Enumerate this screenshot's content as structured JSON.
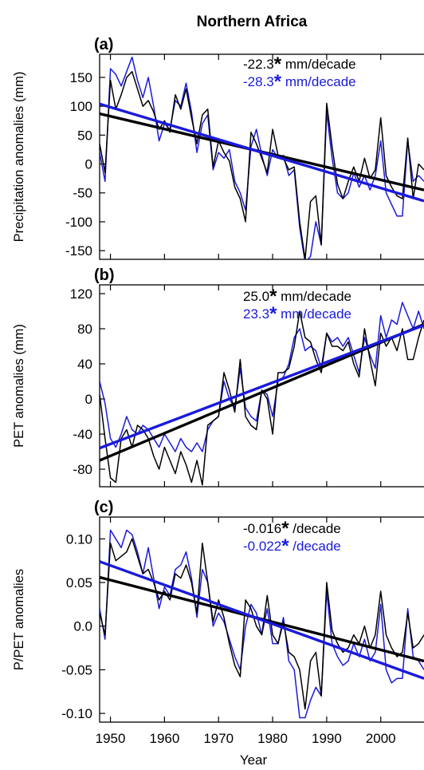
{
  "figure_title": "Northern Africa",
  "xlabel": "Year",
  "colors": {
    "observed": "#000000",
    "model": "#1a1adc",
    "trend_stroke_note": "trend lines drawn thicker"
  },
  "chart_data": [
    {
      "type": "line",
      "panel_label": "(a)",
      "ylabel": "Precipitation anomalies (mm)",
      "xlim": [
        1948,
        2008
      ],
      "ylim": [
        -165,
        190
      ],
      "yticks": [
        150,
        100,
        50,
        0,
        -50,
        -100,
        -150
      ],
      "ytick_labels": [
        "150",
        "100",
        "50",
        "0",
        "-50",
        "-100",
        "-150"
      ],
      "annotations": [
        {
          "value": "-22.3",
          "star": "*",
          "unit": " mm/decade",
          "color": "#000000"
        },
        {
          "value": "-28.3",
          "star": "*",
          "unit": " mm/decade",
          "color": "#1a1adc"
        }
      ],
      "series": [
        {
          "color": "#000000",
          "x": [
            1948,
            1949,
            1950,
            1951,
            1952,
            1953,
            1954,
            1955,
            1956,
            1957,
            1958,
            1959,
            1960,
            1961,
            1962,
            1963,
            1964,
            1965,
            1966,
            1967,
            1968,
            1969,
            1970,
            1971,
            1972,
            1973,
            1974,
            1975,
            1976,
            1977,
            1978,
            1979,
            1980,
            1981,
            1982,
            1983,
            1984,
            1985,
            1986,
            1987,
            1988,
            1989,
            1990,
            1991,
            1992,
            1993,
            1994,
            1995,
            1996,
            1997,
            1998,
            1999,
            2000,
            2001,
            2002,
            2003,
            2004,
            2005,
            2006,
            2007,
            2008
          ],
          "values": [
            35,
            -15,
            145,
            95,
            120,
            150,
            160,
            130,
            100,
            110,
            90,
            60,
            75,
            55,
            120,
            95,
            130,
            80,
            35,
            85,
            95,
            -5,
            40,
            20,
            5,
            -40,
            -60,
            -100,
            55,
            35,
            10,
            -15,
            60,
            15,
            10,
            -10,
            -5,
            -100,
            -165,
            -65,
            -55,
            -140,
            105,
            30,
            -35,
            -60,
            -30,
            -5,
            -30,
            10,
            -25,
            -10,
            80,
            -20,
            -40,
            -55,
            -60,
            45,
            -60,
            0,
            -10
          ],
          "trend": {
            "start": 87,
            "end": -45
          }
        },
        {
          "color": "#1a1adc",
          "x": [
            1948,
            1949,
            1950,
            1951,
            1952,
            1953,
            1954,
            1955,
            1956,
            1957,
            1958,
            1959,
            1960,
            1961,
            1962,
            1963,
            1964,
            1965,
            1966,
            1967,
            1968,
            1969,
            1970,
            1971,
            1972,
            1973,
            1974,
            1975,
            1976,
            1977,
            1978,
            1979,
            1980,
            1981,
            1982,
            1983,
            1984,
            1985,
            1986,
            1987,
            1988,
            1989,
            1990,
            1991,
            1992,
            1993,
            1994,
            1995,
            1996,
            1997,
            1998,
            1999,
            2000,
            2001,
            2002,
            2003,
            2004,
            2005,
            2006,
            2007,
            2008
          ],
          "values": [
            20,
            -30,
            165,
            155,
            135,
            160,
            185,
            145,
            115,
            150,
            100,
            40,
            70,
            60,
            110,
            100,
            140,
            90,
            20,
            70,
            85,
            -10,
            20,
            10,
            25,
            -30,
            -50,
            -80,
            30,
            60,
            15,
            -20,
            25,
            10,
            15,
            -20,
            -10,
            -110,
            -170,
            -160,
            -100,
            -140,
            90,
            10,
            -50,
            -60,
            -50,
            -15,
            -40,
            -20,
            -45,
            -20,
            40,
            -50,
            -70,
            -90,
            -90,
            40,
            -30,
            -20,
            -30
          ],
          "trend": {
            "start": 104,
            "end": -64
          }
        }
      ]
    },
    {
      "type": "line",
      "panel_label": "(b)",
      "ylabel": "PET anomalies (mm)",
      "xlim": [
        1948,
        2008
      ],
      "ylim": [
        -100,
        130
      ],
      "yticks": [
        120,
        80,
        40,
        0,
        -40,
        -80
      ],
      "ytick_labels": [
        "120",
        "80",
        "40",
        "0",
        "-40",
        "-80"
      ],
      "annotations": [
        {
          "value": "25.0",
          "star": "*",
          "unit": " mm/decade",
          "color": "#000000"
        },
        {
          "value": "23.3",
          "star": "*",
          "unit": " mm/decade",
          "color": "#1a1adc"
        }
      ],
      "series": [
        {
          "color": "#000000",
          "x": [
            1948,
            1949,
            1950,
            1951,
            1952,
            1953,
            1954,
            1955,
            1956,
            1957,
            1958,
            1959,
            1960,
            1961,
            1962,
            1963,
            1964,
            1965,
            1966,
            1967,
            1968,
            1969,
            1970,
            1971,
            1972,
            1973,
            1974,
            1975,
            1976,
            1977,
            1978,
            1979,
            1980,
            1981,
            1982,
            1983,
            1984,
            1985,
            1986,
            1987,
            1988,
            1989,
            1990,
            1991,
            1992,
            1993,
            1994,
            1995,
            1996,
            1997,
            1998,
            1999,
            2000,
            2001,
            2002,
            2003,
            2004,
            2005,
            2006,
            2007,
            2008
          ],
          "values": [
            5,
            -45,
            -90,
            -95,
            -45,
            -35,
            -55,
            -30,
            -35,
            -45,
            -65,
            -80,
            -55,
            -70,
            -85,
            -60,
            -75,
            -95,
            -70,
            -98,
            -30,
            -25,
            -20,
            30,
            10,
            -15,
            45,
            -20,
            -30,
            -35,
            10,
            0,
            -40,
            30,
            30,
            35,
            60,
            100,
            70,
            65,
            45,
            30,
            75,
            60,
            60,
            55,
            65,
            40,
            25,
            80,
            45,
            15,
            75,
            60,
            70,
            55,
            80,
            45,
            45,
            70,
            90
          ],
          "trend": {
            "start": -70,
            "end": 85
          }
        },
        {
          "color": "#1a1adc",
          "x": [
            1948,
            1949,
            1950,
            1951,
            1952,
            1953,
            1954,
            1955,
            1956,
            1957,
            1958,
            1959,
            1960,
            1961,
            1962,
            1963,
            1964,
            1965,
            1966,
            1967,
            1968,
            1969,
            1970,
            1971,
            1972,
            1973,
            1974,
            1975,
            1976,
            1977,
            1978,
            1979,
            1980,
            1981,
            1982,
            1983,
            1984,
            1985,
            1986,
            1987,
            1988,
            1989,
            1990,
            1991,
            1992,
            1993,
            1994,
            1995,
            1996,
            1997,
            1998,
            1999,
            2000,
            2001,
            2002,
            2003,
            2004,
            2005,
            2006,
            2007,
            2008
          ],
          "values": [
            20,
            -5,
            -45,
            -55,
            -40,
            -20,
            -35,
            -40,
            -30,
            -35,
            -45,
            -55,
            -40,
            -50,
            -60,
            -45,
            -55,
            -60,
            -50,
            -60,
            -35,
            -25,
            -20,
            20,
            0,
            -10,
            35,
            -10,
            -20,
            -25,
            10,
            5,
            -20,
            20,
            25,
            40,
            70,
            80,
            55,
            60,
            55,
            35,
            75,
            65,
            70,
            60,
            70,
            50,
            30,
            70,
            50,
            35,
            95,
            70,
            90,
            85,
            110,
            95,
            80,
            100,
            80
          ],
          "trend": {
            "start": -56,
            "end": 84
          }
        }
      ]
    },
    {
      "type": "line",
      "panel_label": "(c)",
      "ylabel": "P/PET anomalies",
      "xlim": [
        1948,
        2008
      ],
      "ylim": [
        -0.11,
        0.125
      ],
      "yticks": [
        0.1,
        0.05,
        0.0,
        -0.05,
        -0.1
      ],
      "ytick_labels": [
        "0.10",
        "0.05",
        "0.0",
        "-0.05",
        "-0.10"
      ],
      "annotations": [
        {
          "value": "-0.016",
          "star": "*",
          "unit": " /decade",
          "color": "#000000"
        },
        {
          "value": "-0.022",
          "star": "*",
          "unit": " /decade",
          "color": "#1a1adc"
        }
      ],
      "series": [
        {
          "color": "#000000",
          "x": [
            1948,
            1949,
            1950,
            1951,
            1952,
            1953,
            1954,
            1955,
            1956,
            1957,
            1958,
            1959,
            1960,
            1961,
            1962,
            1963,
            1964,
            1965,
            1966,
            1967,
            1968,
            1969,
            1970,
            1971,
            1972,
            1973,
            1974,
            1975,
            1976,
            1977,
            1978,
            1979,
            1980,
            1981,
            1982,
            1983,
            1984,
            1985,
            1986,
            1987,
            1988,
            1989,
            1990,
            1991,
            1992,
            1993,
            1994,
            1995,
            1996,
            1997,
            1998,
            1999,
            2000,
            2001,
            2002,
            2003,
            2004,
            2005,
            2006,
            2007,
            2008
          ],
          "values": [
            0.015,
            -0.01,
            0.095,
            0.075,
            0.08,
            0.085,
            0.1,
            0.08,
            0.06,
            0.065,
            0.05,
            0.03,
            0.04,
            0.03,
            0.06,
            0.055,
            0.07,
            0.05,
            0.015,
            0.095,
            0.05,
            0.005,
            0.03,
            0.01,
            -0.02,
            -0.045,
            -0.058,
            0.03,
            0.02,
            0.0,
            -0.01,
            0.035,
            -0.01,
            -0.02,
            0.005,
            -0.03,
            -0.035,
            -0.05,
            -0.095,
            -0.04,
            -0.03,
            -0.08,
            0.05,
            -0.005,
            -0.02,
            -0.03,
            -0.025,
            -0.01,
            -0.02,
            0.0,
            -0.025,
            -0.01,
            0.04,
            -0.01,
            -0.025,
            -0.035,
            -0.03,
            0.015,
            -0.025,
            -0.02,
            -0.01
          ],
          "trend": {
            "start": 0.056,
            "end": -0.04
          }
        },
        {
          "color": "#1a1adc",
          "x": [
            1948,
            1949,
            1950,
            1951,
            1952,
            1953,
            1954,
            1955,
            1956,
            1957,
            1958,
            1959,
            1960,
            1961,
            1962,
            1963,
            1964,
            1965,
            1966,
            1967,
            1968,
            1969,
            1970,
            1971,
            1972,
            1973,
            1974,
            1975,
            1976,
            1977,
            1978,
            1979,
            1980,
            1981,
            1982,
            1983,
            1984,
            1985,
            1986,
            1987,
            1988,
            1989,
            1990,
            1991,
            1992,
            1993,
            1994,
            1995,
            1996,
            1997,
            1998,
            1999,
            2000,
            2001,
            2002,
            2003,
            2004,
            2005,
            2006,
            2007,
            2008
          ],
          "values": [
            0.02,
            -0.015,
            0.11,
            0.1,
            0.09,
            0.11,
            0.105,
            0.085,
            0.06,
            0.09,
            0.055,
            0.02,
            0.045,
            0.035,
            0.065,
            0.07,
            0.085,
            0.055,
            0.01,
            0.065,
            0.05,
            0.0,
            0.015,
            0.005,
            -0.015,
            -0.035,
            -0.05,
            0.0,
            0.025,
            0.015,
            -0.01,
            0.02,
            -0.02,
            -0.02,
            0.01,
            -0.04,
            -0.05,
            -0.105,
            -0.105,
            -0.085,
            -0.07,
            -0.08,
            0.04,
            -0.02,
            -0.035,
            -0.045,
            -0.04,
            -0.02,
            -0.035,
            -0.015,
            -0.04,
            -0.03,
            0.025,
            -0.05,
            -0.065,
            -0.06,
            -0.06,
            0.02,
            -0.035,
            -0.04,
            -0.05
          ],
          "trend": {
            "start": 0.074,
            "end": -0.06
          }
        }
      ]
    }
  ],
  "x_ticks": [
    1950,
    1960,
    1970,
    1980,
    1990,
    2000
  ],
  "x_tick_labels": [
    "1950",
    "1960",
    "1970",
    "1980",
    "1990",
    "2000"
  ]
}
